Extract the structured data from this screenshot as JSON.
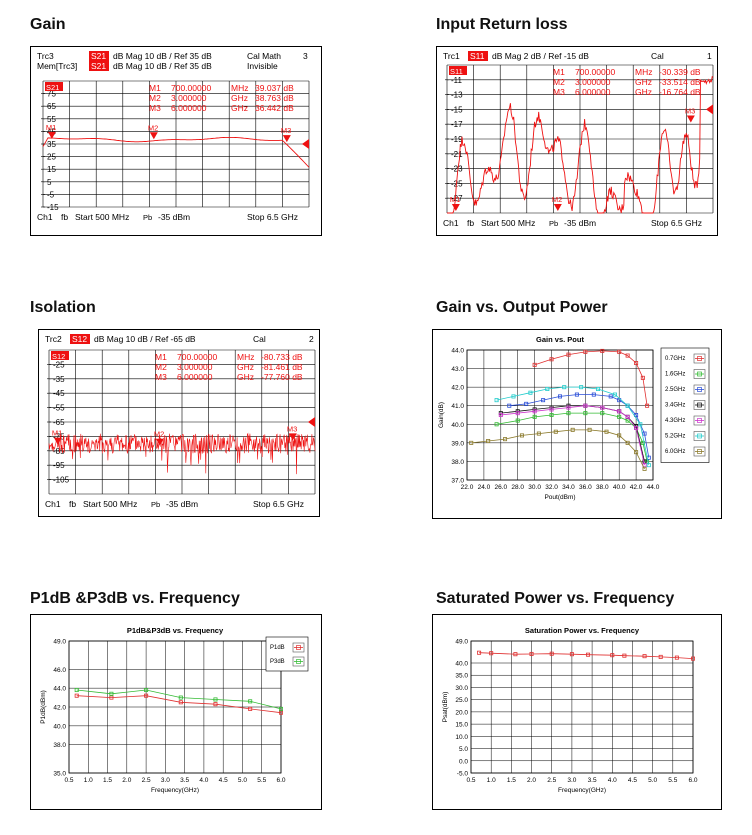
{
  "sections": [
    {
      "title": "Gain"
    },
    {
      "title": "Input Return loss"
    },
    {
      "title": "Isolation"
    },
    {
      "title": "Gain vs. Output Power"
    },
    {
      "title": "P1dB &P3dB vs. Frequency"
    },
    {
      "title": "Saturated Power vs. Frequency"
    }
  ],
  "colors": {
    "trace": "#ee1111",
    "marker": "#ee1111",
    "grid": "#000000"
  },
  "vna_panels": [
    {
      "id": "gain",
      "header": [
        {
          "trc": "Trc3",
          "param": "S21",
          "fmt": "dB Mag  10 dB /  Ref 35 dB",
          "status": "Cal Math",
          "num": "3"
        },
        {
          "trc": "Mem[Trc3]",
          "param": "S21",
          "fmt": "dB Mag  10 dB /  Ref 35 dB",
          "status": "Invisible",
          "num": ""
        }
      ],
      "trace_label": "S21",
      "y_ticks": [
        "75",
        "65",
        "55",
        "45",
        "35",
        "25",
        "15",
        "5",
        "-5",
        "-15"
      ],
      "y_range": [
        -15,
        85
      ],
      "markers": [
        {
          "name": "M1",
          "freq": "700.00000",
          "unit": "MHz",
          "value": "39.037 dB"
        },
        {
          "name": "M2",
          "freq": "3.000000",
          "unit": "GHz",
          "value": "38.763 dB"
        },
        {
          "name": "M3",
          "freq": "6.000000",
          "unit": "GHz",
          "value": "36.442 dB"
        }
      ],
      "footer": {
        "ch": "Ch1",
        "fb": "fb",
        "start": "Start  500 MHz",
        "pb": "Pb",
        "pwr": "-35 dBm",
        "stop": "Stop  6.5 GHz"
      }
    },
    {
      "id": "s11",
      "header": [
        {
          "trc": "Trc1",
          "param": "S11",
          "fmt": "dB Mag  2 dB /  Ref -15 dB",
          "status": "Cal",
          "num": "1"
        }
      ],
      "trace_label": "S11",
      "y_ticks": [
        "-11",
        "-13",
        "-15",
        "-17",
        "-19",
        "-21",
        "-23",
        "-25",
        "-27"
      ],
      "y_range": [
        -29,
        -9
      ],
      "markers": [
        {
          "name": "M1",
          "freq": "700.00000",
          "unit": "MHz",
          "value": "-30.339 dB"
        },
        {
          "name": "M2",
          "freq": "3.000000",
          "unit": "GHz",
          "value": "-33.514 dB"
        },
        {
          "name": "M3",
          "freq": "6.000000",
          "unit": "GHz",
          "value": "-16.764 dB"
        }
      ],
      "footer": {
        "ch": "Ch1",
        "fb": "fb",
        "start": "Start  500 MHz",
        "pb": "Pb",
        "pwr": "-35 dBm",
        "stop": "Stop  6.5 GHz"
      }
    },
    {
      "id": "iso",
      "header": [
        {
          "trc": "Trc2",
          "param": "S12",
          "fmt": "dB Mag  10 dB /  Ref -65 dB",
          "status": "Cal",
          "num": "2"
        }
      ],
      "trace_label": "S12",
      "y_ticks": [
        "-25",
        "-35",
        "-45",
        "-55",
        "-65",
        "-75",
        "-85",
        "-95",
        "-105"
      ],
      "y_range": [
        -115,
        -15
      ],
      "markers": [
        {
          "name": "M1",
          "freq": "700.00000",
          "unit": "MHz",
          "value": "-80.733 dB"
        },
        {
          "name": "M2",
          "freq": "3.000000",
          "unit": "GHz",
          "value": "-81.461 dB"
        },
        {
          "name": "M3",
          "freq": "6.000000",
          "unit": "GHz",
          "value": "-77.760 dB"
        }
      ],
      "footer": {
        "ch": "Ch1",
        "fb": "fb",
        "start": "Start  500 MHz",
        "pb": "Pb",
        "pwr": "-35 dBm",
        "stop": "Stop  6.5 GHz"
      }
    }
  ],
  "chart_data": [
    {
      "id": "gain-vs-pout",
      "type": "line",
      "title": "Gain vs. Pout",
      "xlabel": "Pout(dBm)",
      "ylabel": "Gain(dB)",
      "xlim": [
        22.0,
        44.0
      ],
      "ylim": [
        37.0,
        44.0
      ],
      "x_ticks": [
        "22.0",
        "24.0",
        "26.0",
        "28.0",
        "30.0",
        "32.0",
        "34.0",
        "36.0",
        "38.0",
        "40.0",
        "42.0",
        "44.0"
      ],
      "y_ticks": [
        "37.0",
        "38.0",
        "39.0",
        "40.0",
        "41.0",
        "42.0",
        "43.0",
        "44.0"
      ],
      "legend": "right",
      "series": [
        {
          "name": "0.7GHz",
          "color": "#e03030",
          "x": [
            30,
            32,
            34,
            36,
            38,
            40,
            41,
            42,
            42.8,
            43.3
          ],
          "y": [
            43.2,
            43.5,
            43.75,
            43.9,
            43.95,
            43.9,
            43.7,
            43.3,
            42.5,
            41.0
          ]
        },
        {
          "name": "1.6GHz",
          "color": "#33bb33",
          "x": [
            25.5,
            28,
            30,
            32,
            34,
            36,
            38,
            40,
            41,
            42,
            42.8,
            43.3
          ],
          "y": [
            40.0,
            40.2,
            40.4,
            40.5,
            40.6,
            40.6,
            40.6,
            40.4,
            40.2,
            39.8,
            39.0,
            38.0
          ]
        },
        {
          "name": "2.5GHz",
          "color": "#2b4fd8",
          "x": [
            27,
            29,
            31,
            33,
            35,
            37,
            39,
            40,
            41,
            42,
            43,
            43.5
          ],
          "y": [
            41.0,
            41.1,
            41.3,
            41.5,
            41.6,
            41.6,
            41.5,
            41.3,
            41.0,
            40.5,
            39.5,
            38.2
          ]
        },
        {
          "name": "3.4GHz",
          "color": "#111111",
          "x": [
            26,
            28,
            30,
            32,
            34,
            36,
            38,
            40,
            41,
            42,
            43
          ],
          "y": [
            40.6,
            40.7,
            40.8,
            40.9,
            41.0,
            41.0,
            40.9,
            40.7,
            40.4,
            39.9,
            38.0
          ]
        },
        {
          "name": "4.3GHz",
          "color": "#cc33cc",
          "x": [
            26,
            28,
            30,
            32,
            34,
            36,
            38,
            40,
            41,
            42,
            43
          ],
          "y": [
            40.5,
            40.6,
            40.7,
            40.8,
            40.9,
            41.0,
            40.9,
            40.7,
            40.4,
            39.8,
            37.8
          ]
        },
        {
          "name": "5.2GHz",
          "color": "#22cccc",
          "x": [
            25.5,
            27.5,
            29.5,
            31.5,
            33.5,
            35.5,
            37.5,
            39.5,
            41,
            42.5,
            43.5
          ],
          "y": [
            41.3,
            41.5,
            41.7,
            41.9,
            42.0,
            42.0,
            41.9,
            41.6,
            41.0,
            40.0,
            37.8
          ]
        },
        {
          "name": "6.0GHz",
          "color": "#8b7a2b",
          "x": [
            22.5,
            24.5,
            26.5,
            28.5,
            30.5,
            32.5,
            34.5,
            36.5,
            38.5,
            40,
            41,
            42,
            43
          ],
          "y": [
            39.0,
            39.1,
            39.2,
            39.4,
            39.5,
            39.6,
            39.7,
            39.7,
            39.6,
            39.4,
            39.0,
            38.5,
            37.6
          ]
        }
      ]
    },
    {
      "id": "p1db-p3db",
      "type": "line",
      "title": "P1dB&P3dB vs. Frequency",
      "xlabel": "Frequency(GHz)",
      "ylabel": "P1dB(dBm)",
      "xlim": [
        0.5,
        6.0
      ],
      "ylim": [
        35.0,
        49.0
      ],
      "x_ticks": [
        "0.5",
        "1.0",
        "1.5",
        "2.0",
        "2.5",
        "3.0",
        "3.5",
        "4.0",
        "4.5",
        "5.0",
        "5.5",
        "6.0"
      ],
      "y_ticks": [
        "35.0",
        "38.0",
        "40.0",
        "42.0",
        "44.0",
        "46.0",
        "49.0"
      ],
      "legend": "right",
      "series": [
        {
          "name": "P1dB",
          "color": "#e03030",
          "x": [
            0.7,
            1.6,
            2.5,
            3.4,
            4.3,
            5.2,
            6.0
          ],
          "y": [
            43.2,
            43.0,
            43.2,
            42.5,
            42.3,
            41.8,
            41.4
          ]
        },
        {
          "name": "P3dB",
          "color": "#33bb33",
          "x": [
            0.7,
            1.6,
            2.5,
            3.4,
            4.3,
            5.2,
            6.0
          ],
          "y": [
            43.8,
            43.4,
            43.8,
            43.0,
            42.8,
            42.6,
            41.8
          ]
        }
      ]
    },
    {
      "id": "psat",
      "type": "line",
      "title": "Saturation Power vs. Frequency",
      "xlabel": "Frequency(GHz)",
      "ylabel": "Psat(dBm)",
      "xlim": [
        0.5,
        6.0
      ],
      "ylim": [
        -5.0,
        49.0
      ],
      "x_ticks": [
        "0.5",
        "1.0",
        "1.5",
        "2.0",
        "2.5",
        "3.0",
        "3.5",
        "4.0",
        "4.5",
        "5.0",
        "5.5",
        "6.0"
      ],
      "y_ticks": [
        "-5.0",
        "0.0",
        "5.0",
        "10.0",
        "15.0",
        "20.0",
        "25.0",
        "30.0",
        "35.0",
        "40.0",
        "49.0"
      ],
      "legend": "none",
      "series": [
        {
          "name": "",
          "color": "#e03030",
          "x": [
            0.7,
            1.0,
            1.6,
            2.0,
            2.5,
            3.0,
            3.4,
            4.0,
            4.3,
            4.8,
            5.2,
            5.6,
            6.0
          ],
          "y": [
            44.2,
            44.0,
            43.6,
            43.7,
            43.8,
            43.6,
            43.4,
            43.2,
            43.0,
            42.8,
            42.5,
            42.2,
            41.8
          ]
        }
      ]
    }
  ]
}
